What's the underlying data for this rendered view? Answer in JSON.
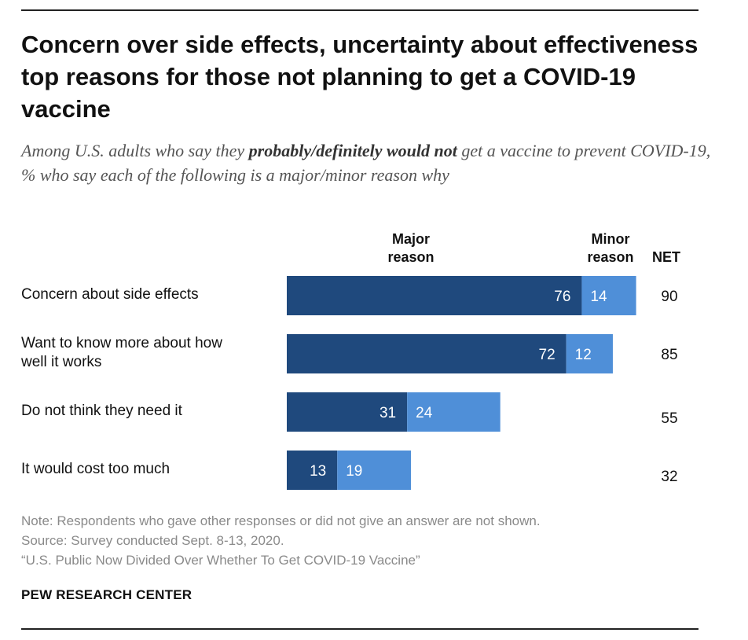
{
  "title": "Concern over side effects, uncertainty about effectiveness top reasons for those not planning to get a COVID-19 vaccine",
  "subtitle": {
    "part1": "Among U.S. adults who say they ",
    "emphasis": "probably/definitely would not",
    "part2": " get a vaccine to prevent COVID-19, % who say each of the following is a major/minor reason why"
  },
  "column_headers": {
    "major": "Major reason",
    "minor": "Minor reason",
    "net": "NET"
  },
  "chart_data": {
    "type": "bar",
    "orientation": "horizontal",
    "stacked": true,
    "categories": [
      [
        "Concern about side effects"
      ],
      [
        "Want to know more about how",
        "well it works"
      ],
      [
        "Do not think they need it"
      ],
      [
        "It would cost too much"
      ]
    ],
    "series": [
      {
        "name": "Major reason",
        "values": [
          76,
          72,
          31,
          13
        ],
        "color": "#1f497d"
      },
      {
        "name": "Minor reason",
        "values": [
          14,
          12,
          24,
          19
        ],
        "color": "#4f8fd8"
      }
    ],
    "net": [
      90,
      85,
      55,
      32
    ],
    "xlim": [
      0,
      100
    ],
    "grid": false
  },
  "notes": [
    "Note: Respondents who gave other responses or did not give an answer are not shown.",
    "Source: Survey conducted Sept. 8-13, 2020.",
    "“U.S. Public Now Divided Over Whether To Get COVID-19 Vaccine”"
  ],
  "source_org": "PEW RESEARCH CENTER"
}
